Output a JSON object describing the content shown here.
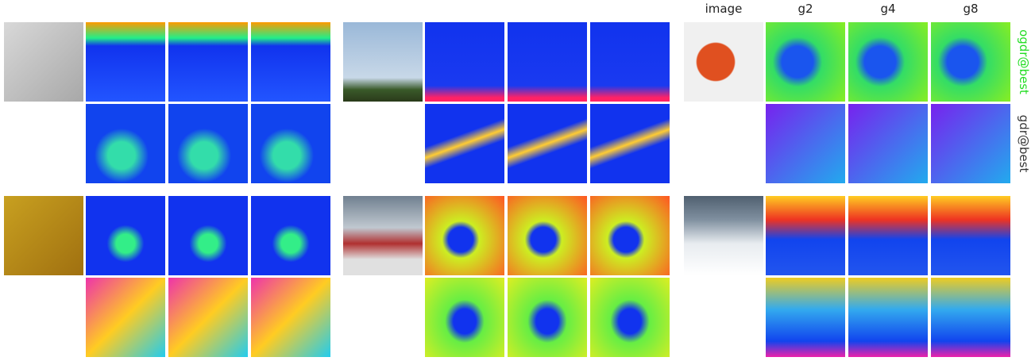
{
  "header": {
    "columns": [
      "image",
      "g2",
      "g4",
      "g8"
    ]
  },
  "row_labels": [
    "ogdr@best",
    "gdr@best"
  ]
}
